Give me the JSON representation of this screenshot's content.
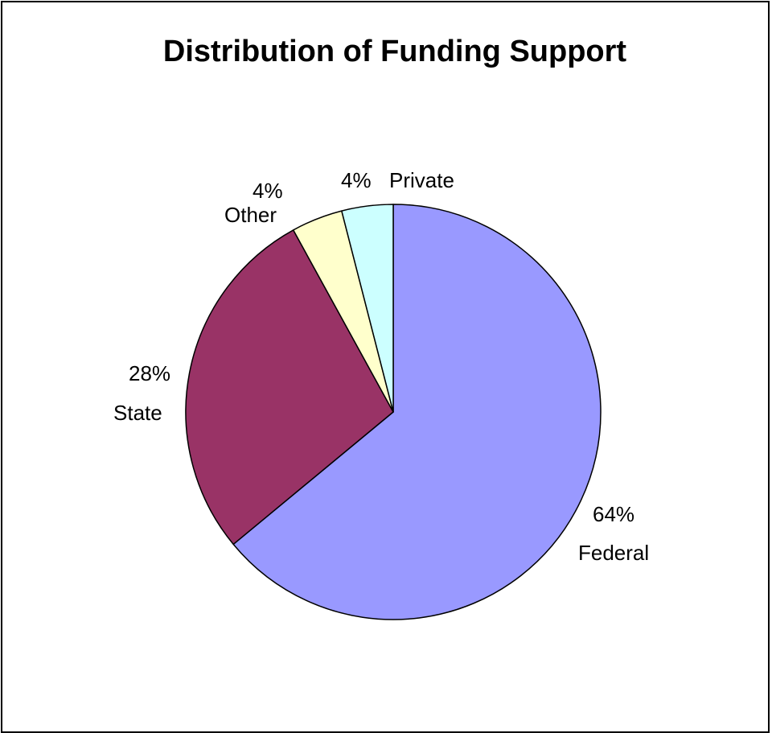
{
  "chart_data": {
    "type": "pie",
    "title": "Distribution of Funding Support",
    "slices": [
      {
        "name": "Federal",
        "value": 64,
        "label": "64%",
        "color": "#9999FF"
      },
      {
        "name": "State",
        "value": 28,
        "label": "28%",
        "color": "#993366"
      },
      {
        "name": "Other",
        "value": 4,
        "label": "4%",
        "color": "#FFFFCC"
      },
      {
        "name": "Private",
        "value": 4,
        "label": "4%",
        "color": "#CCFFFF"
      }
    ],
    "start": "12 o'clock",
    "direction": "clockwise",
    "legend": "none",
    "labels": "outside slices"
  }
}
